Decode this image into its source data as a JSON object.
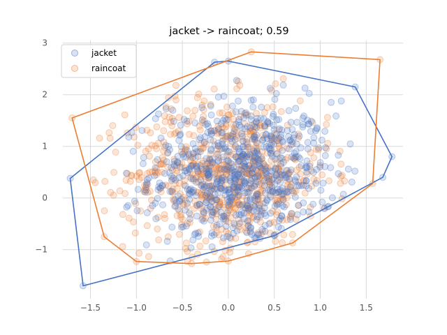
{
  "chart_data": {
    "type": "scatter",
    "title": "jacket -> raincoat; 0.59",
    "xlabel": "",
    "ylabel": "",
    "xlim": [
      -1.8,
      1.9
    ],
    "ylim": [
      -1.95,
      3.05
    ],
    "x_ticks": [
      -1.5,
      -1.0,
      -0.5,
      0.0,
      0.5,
      1.0,
      1.5
    ],
    "x_tick_labels": [
      "−1.5",
      "−1.0",
      "−0.5",
      "0.0",
      "0.5",
      "1.0",
      "1.5"
    ],
    "y_ticks": [
      -1,
      0,
      1,
      2,
      3
    ],
    "y_tick_labels": [
      "−1",
      "0",
      "1",
      "2",
      "3"
    ],
    "grid": true,
    "legend_position": "top-left",
    "series": [
      {
        "name": "jacket",
        "color": "#4472c4",
        "center": [
          0.15,
          0.45
        ],
        "spread": [
          0.5,
          0.72
        ],
        "count": 700,
        "hull": [
          [
            -1.58,
            -1.7
          ],
          [
            0.5,
            -0.73
          ],
          [
            1.68,
            0.4
          ],
          [
            1.78,
            0.8
          ],
          [
            1.38,
            2.15
          ],
          [
            0.0,
            2.65
          ],
          [
            -0.15,
            2.63
          ],
          [
            -1.72,
            0.38
          ]
        ]
      },
      {
        "name": "raincoat",
        "color": "#ed7d31",
        "center": [
          0.0,
          0.45
        ],
        "spread": [
          0.55,
          0.72
        ],
        "count": 700,
        "hull": [
          [
            -0.4,
            -1.27
          ],
          [
            0.0,
            -1.22
          ],
          [
            0.7,
            -0.87
          ],
          [
            1.57,
            0.28
          ],
          [
            1.65,
            2.68
          ],
          [
            0.25,
            2.83
          ],
          [
            -1.7,
            1.55
          ],
          [
            -1.35,
            -0.75
          ],
          [
            -1.0,
            -1.23
          ]
        ]
      }
    ]
  }
}
